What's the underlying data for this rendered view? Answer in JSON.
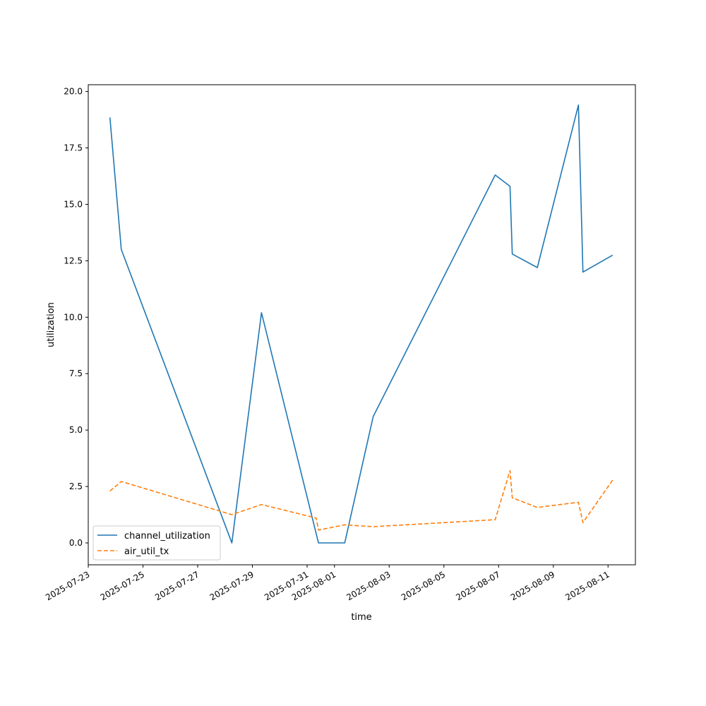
{
  "chart_data": {
    "type": "line",
    "title": "",
    "xlabel": "time",
    "ylabel": "utilization",
    "x_type": "date",
    "xlim": [
      "2025-07-23T00:00",
      "2025-08-12T00:00"
    ],
    "ylim": [
      -0.97,
      20.3
    ],
    "grid": false,
    "legend_position": "lower-left",
    "x_ticks": [
      "2025-07-23",
      "2025-07-25",
      "2025-07-27",
      "2025-07-29",
      "2025-07-31",
      "2025-08-01",
      "2025-08-03",
      "2025-08-05",
      "2025-08-07",
      "2025-08-09",
      "2025-08-11"
    ],
    "y_ticks": [
      0.0,
      2.5,
      5.0,
      7.5,
      10.0,
      12.5,
      15.0,
      17.5,
      20.0
    ],
    "y_tick_labels": [
      "0.0",
      "2.5",
      "5.0",
      "7.5",
      "10.0",
      "12.5",
      "15.0",
      "17.5",
      "20.0"
    ],
    "series": [
      {
        "name": "channel_utilization",
        "color": "#1f77b4",
        "style": "solid",
        "points": [
          [
            "2025-07-23T19:00",
            18.85
          ],
          [
            "2025-07-24T05:00",
            13.0
          ],
          [
            "2025-07-28T06:00",
            0.0
          ],
          [
            "2025-07-29T08:00",
            10.2
          ],
          [
            "2025-07-31T10:00",
            0.0
          ],
          [
            "2025-08-01T09:00",
            0.0
          ],
          [
            "2025-08-02T10:00",
            5.6
          ],
          [
            "2025-08-06T21:00",
            16.3
          ],
          [
            "2025-08-07T10:00",
            15.8
          ],
          [
            "2025-08-07T12:00",
            12.8
          ],
          [
            "2025-08-08T10:00",
            12.2
          ],
          [
            "2025-08-09T22:00",
            19.4
          ],
          [
            "2025-08-10T02:00",
            12.0
          ],
          [
            "2025-08-11T04:00",
            12.75
          ]
        ]
      },
      {
        "name": "air_util_tx",
        "color": "#ff7f0e",
        "style": "dashed",
        "points": [
          [
            "2025-07-23T19:00",
            2.3
          ],
          [
            "2025-07-24T05:00",
            2.72
          ],
          [
            "2025-07-28T06:00",
            1.25
          ],
          [
            "2025-07-29T08:00",
            1.7
          ],
          [
            "2025-07-31T08:00",
            1.1
          ],
          [
            "2025-07-31T10:00",
            0.57
          ],
          [
            "2025-08-01T09:00",
            0.8
          ],
          [
            "2025-08-02T10:00",
            0.72
          ],
          [
            "2025-08-06T21:00",
            1.03
          ],
          [
            "2025-08-07T10:00",
            3.2
          ],
          [
            "2025-08-07T12:00",
            2.0
          ],
          [
            "2025-08-08T10:00",
            1.57
          ],
          [
            "2025-08-09T22:00",
            1.8
          ],
          [
            "2025-08-10T02:00",
            0.9
          ],
          [
            "2025-08-11T04:00",
            2.78
          ]
        ]
      }
    ]
  }
}
